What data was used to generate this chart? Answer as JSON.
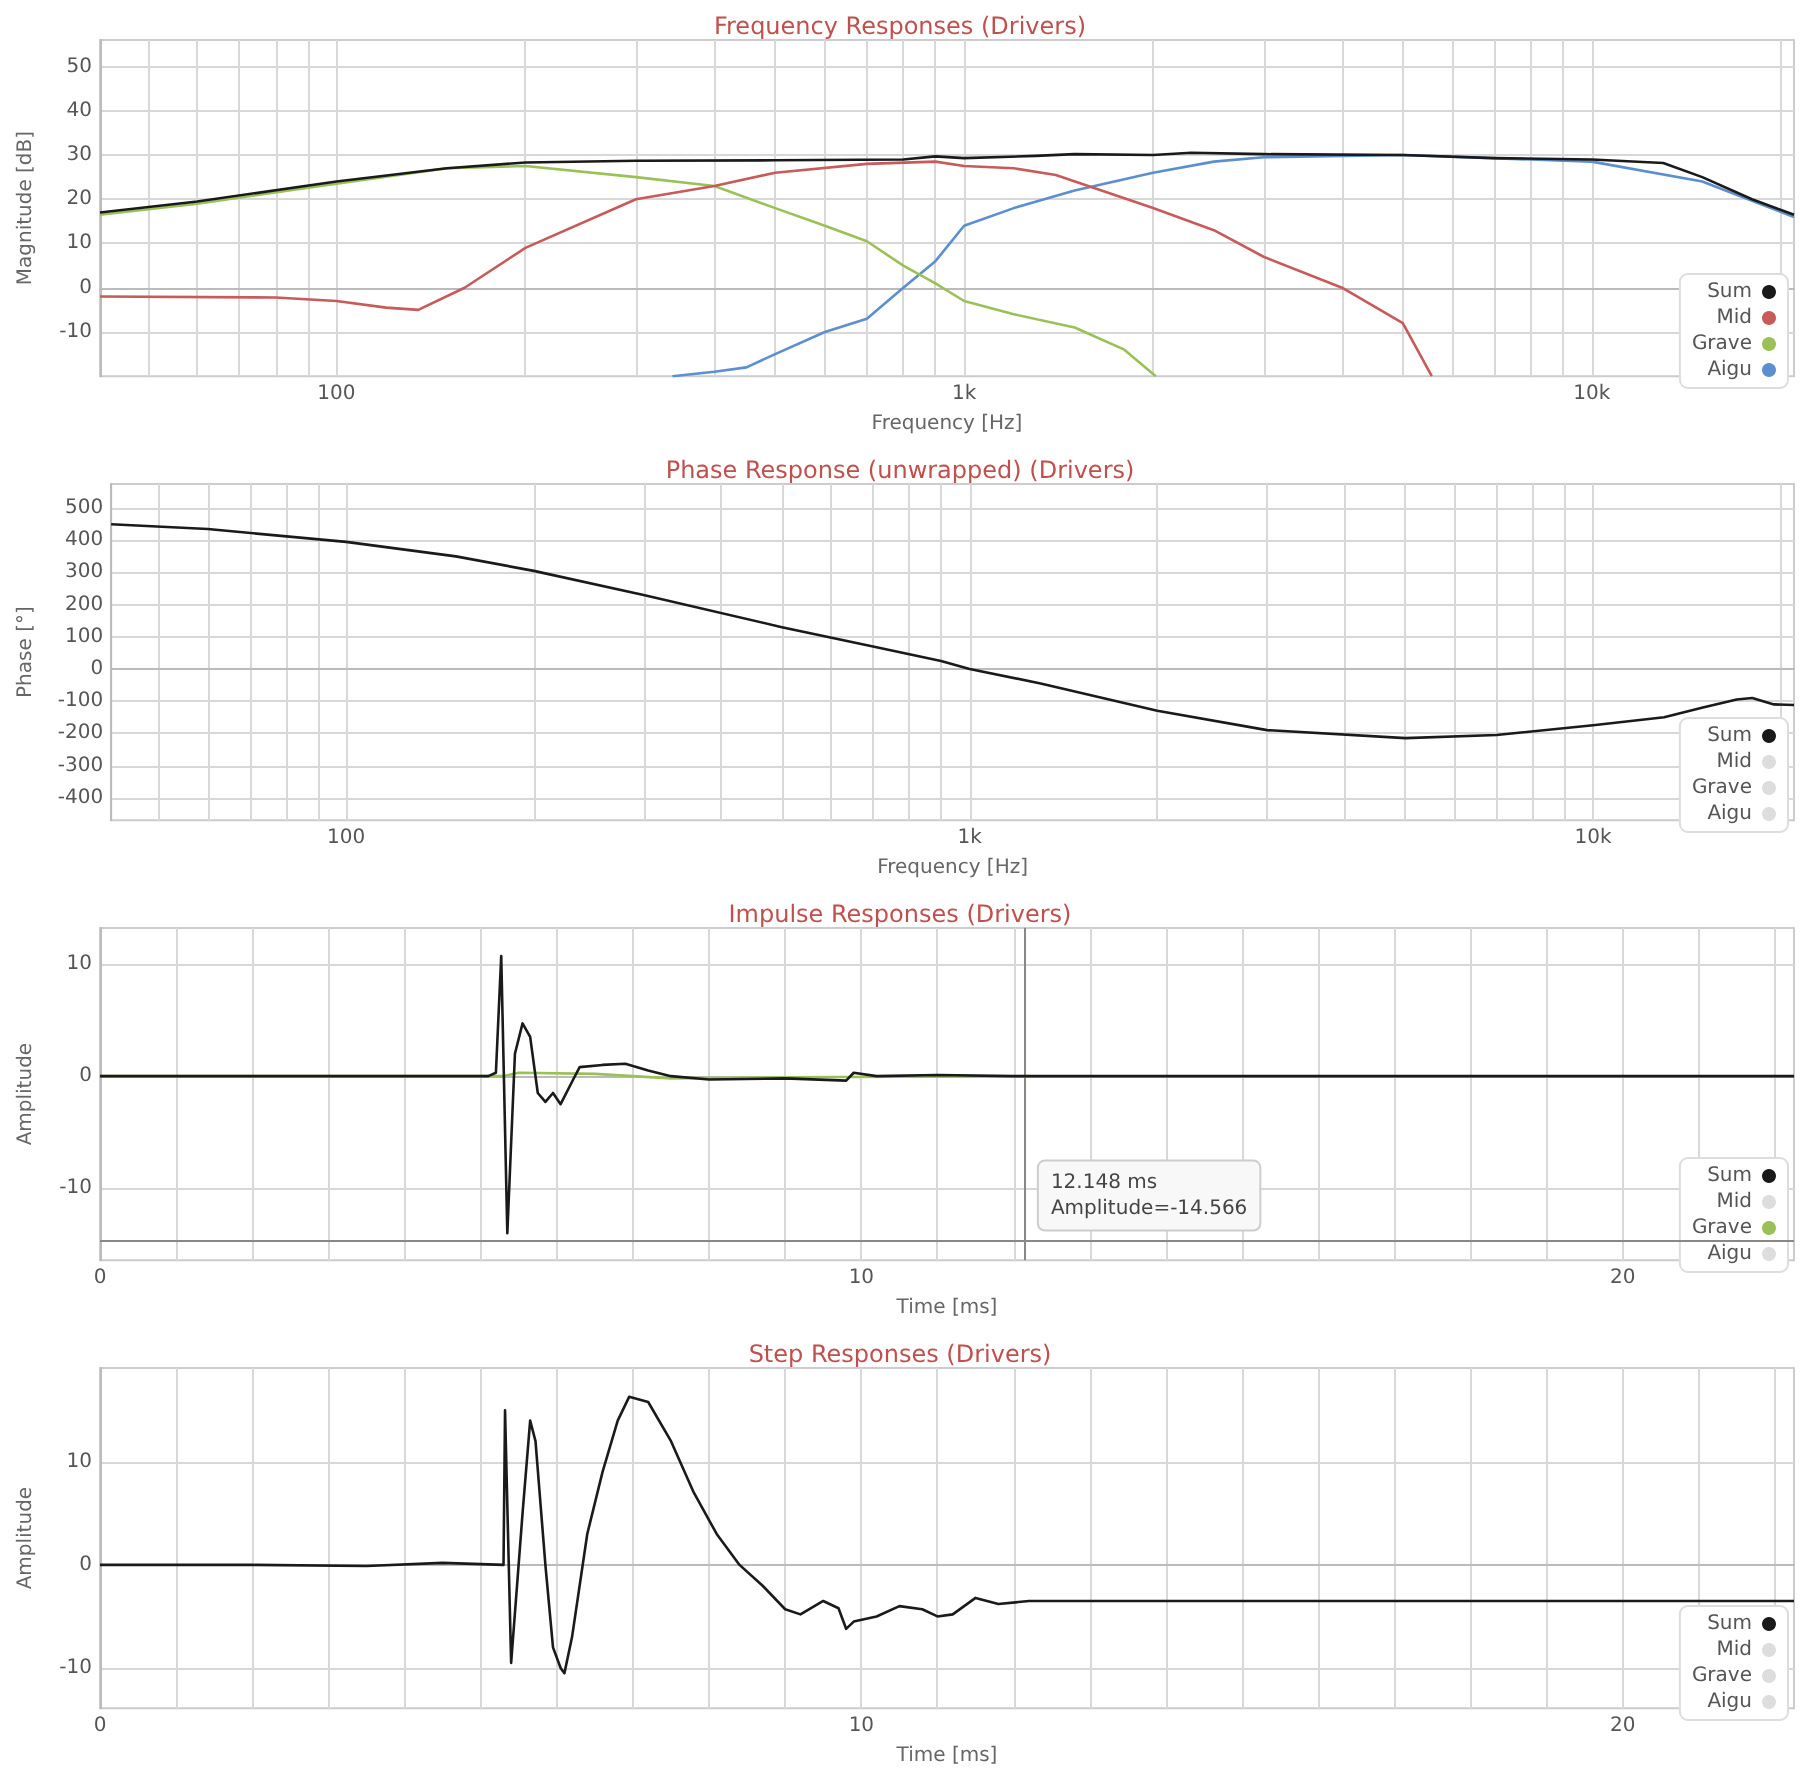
{
  "chart_data": [
    {
      "type": "line",
      "title": "Frequency Responses (Drivers)",
      "xlabel": "Frequency [Hz]",
      "ylabel": "Magnitude [dB]",
      "log": "x",
      "xlim": [
        42,
        21000
      ],
      "ylim": [
        -20,
        56
      ],
      "xticks": [
        {
          "value": 50,
          "label": null
        },
        {
          "value": 60,
          "label": null
        },
        {
          "value": 70,
          "label": null
        },
        {
          "value": 80,
          "label": null
        },
        {
          "value": 90,
          "label": null
        },
        {
          "value": 100,
          "label": "100"
        },
        {
          "value": 200,
          "label": null
        },
        {
          "value": 300,
          "label": null
        },
        {
          "value": 400,
          "label": null
        },
        {
          "value": 500,
          "label": null
        },
        {
          "value": 600,
          "label": null
        },
        {
          "value": 700,
          "label": null
        },
        {
          "value": 800,
          "label": null
        },
        {
          "value": 900,
          "label": null
        },
        {
          "value": 1000,
          "label": "1k"
        },
        {
          "value": 2000,
          "label": null
        },
        {
          "value": 3000,
          "label": null
        },
        {
          "value": 4000,
          "label": null
        },
        {
          "value": 5000,
          "label": null
        },
        {
          "value": 6000,
          "label": null
        },
        {
          "value": 7000,
          "label": null
        },
        {
          "value": 8000,
          "label": null
        },
        {
          "value": 9000,
          "label": null
        },
        {
          "value": 10000,
          "label": "10k"
        },
        {
          "value": 20000,
          "label": null
        }
      ],
      "yticks": [
        -10,
        0,
        10,
        20,
        30,
        40,
        50
      ],
      "grid": true,
      "legend": "bottom right",
      "marker": "none",
      "line_style": "solid",
      "series": [
        {
          "name": "Sum",
          "color": "#1a1a1a",
          "x": [
            42,
            60,
            100,
            150,
            200,
            300,
            500,
            800,
            900,
            1000,
            1300,
            1500,
            2000,
            2300,
            3000,
            5000,
            7000,
            10000,
            13000,
            15000,
            18000,
            21000
          ],
          "values": [
            17,
            19.5,
            24,
            27,
            28.3,
            28.7,
            28.8,
            29,
            29.7,
            29.3,
            29.8,
            30.2,
            30,
            30.5,
            30.2,
            30,
            29.3,
            29,
            28.2,
            25,
            20,
            16.5
          ]
        },
        {
          "name": "Mid",
          "color": "#c85a5a",
          "x": [
            42,
            80,
            100,
            120,
            135,
            160,
            200,
            300,
            400,
            500,
            700,
            900,
            1000,
            1200,
            1400,
            2000,
            2500,
            3000,
            4000,
            5000,
            5560
          ],
          "values": [
            -2,
            -2.2,
            -3,
            -4.5,
            -5,
            0,
            9,
            20,
            23,
            26,
            28,
            28.5,
            27.5,
            27,
            25.5,
            18,
            13,
            7,
            0,
            -8,
            -20
          ]
        },
        {
          "name": "Grave",
          "color": "#9ac156",
          "x": [
            42,
            60,
            100,
            150,
            200,
            300,
            400,
            500,
            600,
            700,
            800,
            900,
            1000,
            1200,
            1500,
            1800,
            2020
          ],
          "values": [
            16.5,
            19,
            23.5,
            27,
            27.5,
            25,
            23,
            18,
            14,
            10.5,
            5,
            1,
            -3,
            -6,
            -9,
            -14,
            -20
          ]
        },
        {
          "name": "Aigu",
          "color": "#5b8fd0",
          "x": [
            343,
            400,
            450,
            500,
            600,
            700,
            800,
            900,
            1000,
            1200,
            1500,
            2000,
            2500,
            3000,
            5000,
            10000,
            15000,
            21000
          ],
          "values": [
            -20,
            -19,
            -18,
            -15,
            -10,
            -7,
            0,
            6,
            14,
            18,
            22,
            26,
            28.5,
            29.5,
            30,
            28.5,
            24,
            16
          ]
        }
      ]
    },
    {
      "type": "line",
      "title": "Phase Response (unwrapped) (Drivers)",
      "xlabel": "Frequency [Hz]",
      "ylabel": "Phase [°]",
      "log": "x",
      "xlim": [
        42,
        21000
      ],
      "ylim": [
        -470,
        575
      ],
      "xticks": [
        {
          "value": 50,
          "label": null
        },
        {
          "value": 60,
          "label": null
        },
        {
          "value": 70,
          "label": null
        },
        {
          "value": 80,
          "label": null
        },
        {
          "value": 90,
          "label": null
        },
        {
          "value": 100,
          "label": "100"
        },
        {
          "value": 200,
          "label": null
        },
        {
          "value": 300,
          "label": null
        },
        {
          "value": 400,
          "label": null
        },
        {
          "value": 500,
          "label": null
        },
        {
          "value": 600,
          "label": null
        },
        {
          "value": 700,
          "label": null
        },
        {
          "value": 800,
          "label": null
        },
        {
          "value": 900,
          "label": null
        },
        {
          "value": 1000,
          "label": "1k"
        },
        {
          "value": 2000,
          "label": null
        },
        {
          "value": 3000,
          "label": null
        },
        {
          "value": 4000,
          "label": null
        },
        {
          "value": 5000,
          "label": null
        },
        {
          "value": 6000,
          "label": null
        },
        {
          "value": 7000,
          "label": null
        },
        {
          "value": 8000,
          "label": null
        },
        {
          "value": 9000,
          "label": null
        },
        {
          "value": 10000,
          "label": "10k"
        },
        {
          "value": 20000,
          "label": null
        }
      ],
      "yticks": [
        -400,
        -300,
        -200,
        -100,
        0,
        100,
        200,
        300,
        400,
        500
      ],
      "grid": true,
      "legend": "bottom right",
      "marker": "none",
      "line_style": "solid",
      "series": [
        {
          "name": "Sum",
          "color": "#1a1a1a",
          "x": [
            42,
            60,
            100,
            150,
            200,
            300,
            500,
            700,
            900,
            1000,
            1300,
            2000,
            3000,
            5000,
            7000,
            10000,
            13000,
            15000,
            17000,
            18000,
            19500,
            21000
          ],
          "values": [
            450,
            435,
            395,
            350,
            305,
            230,
            130,
            70,
            25,
            0,
            -45,
            -130,
            -190,
            -215,
            -205,
            -175,
            -150,
            -120,
            -95,
            -90,
            -110,
            -112
          ]
        },
        {
          "name": "Mid",
          "color": "#dddddd"
        },
        {
          "name": "Grave",
          "color": "#dddddd"
        },
        {
          "name": "Aigu",
          "color": "#dddddd"
        }
      ]
    },
    {
      "type": "line",
      "title": "Impulse Responses (Drivers)",
      "xlabel": "Time [ms]",
      "ylabel": "Amplitude",
      "xlim": [
        0,
        22.25
      ],
      "ylim": [
        -16.4,
        13.2
      ],
      "xticks": [
        0,
        {
          "value": 1,
          "label": null
        },
        {
          "value": 2,
          "label": null
        },
        {
          "value": 3,
          "label": null
        },
        {
          "value": 4,
          "label": null
        },
        {
          "value": 5,
          "label": null
        },
        {
          "value": 6,
          "label": null
        },
        {
          "value": 7,
          "label": null
        },
        {
          "value": 8,
          "label": null
        },
        {
          "value": 9,
          "label": null
        },
        10,
        {
          "value": 11,
          "label": null
        },
        {
          "value": 12,
          "label": null
        },
        {
          "value": 13,
          "label": null
        },
        {
          "value": 14,
          "label": null
        },
        {
          "value": 15,
          "label": null
        },
        {
          "value": 16,
          "label": null
        },
        {
          "value": 17,
          "label": null
        },
        {
          "value": 18,
          "label": null
        },
        {
          "value": 19,
          "label": null
        },
        20,
        {
          "value": 21,
          "label": null
        },
        {
          "value": 22,
          "label": null
        }
      ],
      "yticks": [
        -10,
        0,
        10
      ],
      "grid": true,
      "legend": "bottom right",
      "marker": "none",
      "line_style": "solid",
      "ref_lines": [
        {
          "axis": "x",
          "value": 12.148,
          "color": "#888888"
        },
        {
          "axis": "y",
          "value": -14.566,
          "color": "#888888"
        }
      ],
      "annotations": [
        {
          "text": "12.148 ms\nAmplitude=-14.566",
          "x": 12.148,
          "y": -14.566
        }
      ],
      "series": [
        {
          "name": "Sum",
          "color": "#1a1a1a",
          "x": [
            0,
            5.1,
            5.2,
            5.27,
            5.35,
            5.45,
            5.55,
            5.65,
            5.75,
            5.85,
            5.95,
            6.05,
            6.2,
            6.3,
            6.6,
            6.9,
            7.2,
            7.5,
            8,
            9,
            9.8,
            9.9,
            10.2,
            11,
            12,
            22.25
          ],
          "values": [
            0,
            0,
            0.3,
            10.7,
            -14,
            2,
            4.7,
            3.5,
            -1.5,
            -2.3,
            -1.5,
            -2.5,
            -0.5,
            0.8,
            1,
            1.1,
            0.5,
            0,
            -0.3,
            -0.2,
            -0.4,
            0.3,
            0,
            0.1,
            0,
            0
          ]
        },
        {
          "name": "Mid",
          "color": "#dddddd"
        },
        {
          "name": "Grave",
          "color": "#9ac156",
          "x": [
            0,
            5.3,
            5.5,
            6.5,
            7.5,
            9,
            12.2
          ],
          "values": [
            0,
            0,
            0.3,
            0.2,
            -0.2,
            -0.1,
            0
          ]
        },
        {
          "name": "Aigu",
          "color": "#dddddd"
        }
      ]
    },
    {
      "type": "line",
      "title": "Step Responses (Drivers)",
      "xlabel": "Time [ms]",
      "ylabel": "Amplitude",
      "xlim": [
        0,
        22.25
      ],
      "ylim": [
        -13.9,
        19.1
      ],
      "xticks": [
        0,
        {
          "value": 1,
          "label": null
        },
        {
          "value": 2,
          "label": null
        },
        {
          "value": 3,
          "label": null
        },
        {
          "value": 4,
          "label": null
        },
        {
          "value": 5,
          "label": null
        },
        {
          "value": 6,
          "label": null
        },
        {
          "value": 7,
          "label": null
        },
        {
          "value": 8,
          "label": null
        },
        {
          "value": 9,
          "label": null
        },
        10,
        {
          "value": 11,
          "label": null
        },
        {
          "value": 12,
          "label": null
        },
        {
          "value": 13,
          "label": null
        },
        {
          "value": 14,
          "label": null
        },
        {
          "value": 15,
          "label": null
        },
        {
          "value": 16,
          "label": null
        },
        {
          "value": 17,
          "label": null
        },
        {
          "value": 18,
          "label": null
        },
        {
          "value": 19,
          "label": null
        },
        20,
        {
          "value": 21,
          "label": null
        },
        {
          "value": 22,
          "label": null
        }
      ],
      "yticks": [
        -10,
        0,
        10
      ],
      "grid": true,
      "legend": "bottom right",
      "marker": "none",
      "line_style": "solid",
      "series": [
        {
          "name": "Sum",
          "color": "#1a1a1a",
          "x": [
            0,
            2,
            3.5,
            4.5,
            5.3,
            5.32,
            5.4,
            5.55,
            5.65,
            5.72,
            5.85,
            5.95,
            6.05,
            6.1,
            6.2,
            6.4,
            6.6,
            6.8,
            6.95,
            7.2,
            7.5,
            7.8,
            8.1,
            8.4,
            8.7,
            9,
            9.2,
            9.5,
            9.7,
            9.8,
            9.9,
            10.2,
            10.5,
            10.8,
            11,
            11.2,
            11.5,
            11.8,
            12.2,
            22.25
          ],
          "values": [
            0,
            0,
            -0.1,
            0.2,
            0,
            15,
            -9.5,
            5,
            14,
            12,
            0,
            -8,
            -10,
            -10.5,
            -7,
            3,
            9,
            14,
            16.3,
            15.8,
            12,
            7,
            3,
            0,
            -2,
            -4.3,
            -4.8,
            -3.5,
            -4.2,
            -6.2,
            -5.5,
            -5,
            -4,
            -4.3,
            -5,
            -4.8,
            -3.2,
            -3.8,
            -3.5,
            -3.5
          ]
        },
        {
          "name": "Mid",
          "color": "#dddddd"
        },
        {
          "name": "Grave",
          "color": "#dddddd"
        },
        {
          "name": "Aigu",
          "color": "#dddddd"
        }
      ]
    }
  ]
}
